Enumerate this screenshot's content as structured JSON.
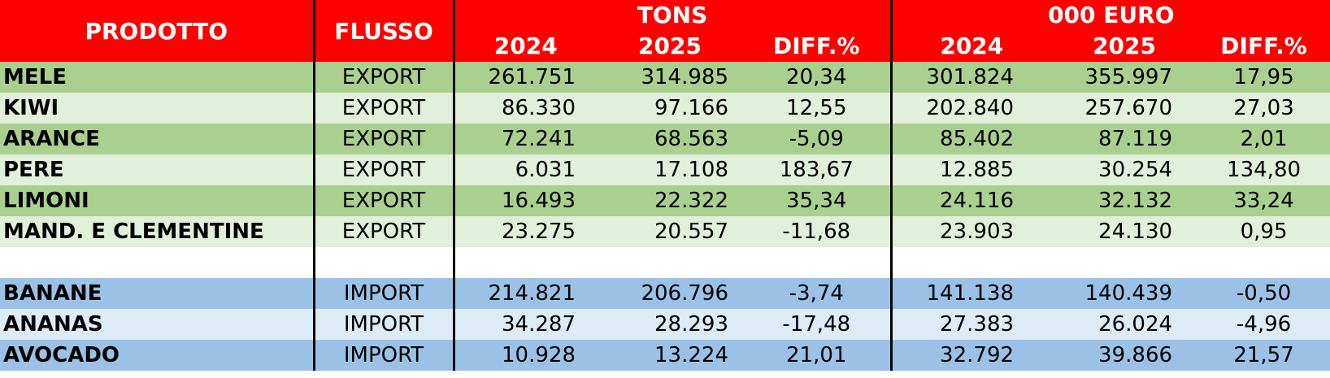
{
  "header": {
    "prodotto": "PRODOTTO",
    "flusso": "FLUSSO",
    "tons": "TONS",
    "euro": "000 EURO",
    "y2024": "2024",
    "y2025": "2025",
    "diff": "DIFF.%"
  },
  "rows": [
    {
      "prodotto": "MELE",
      "flusso": "EXPORT",
      "t2024": "261.751",
      "t2025": "314.985",
      "tdiff": "20,34",
      "e2024": "301.824",
      "e2025": "355.997",
      "ediff": "17,95"
    },
    {
      "prodotto": "KIWI",
      "flusso": "EXPORT",
      "t2024": "86.330",
      "t2025": "97.166",
      "tdiff": "12,55",
      "e2024": "202.840",
      "e2025": "257.670",
      "ediff": "27,03"
    },
    {
      "prodotto": "ARANCE",
      "flusso": "EXPORT",
      "t2024": "72.241",
      "t2025": "68.563",
      "tdiff": "-5,09",
      "e2024": "85.402",
      "e2025": "87.119",
      "ediff": "2,01"
    },
    {
      "prodotto": "PERE",
      "flusso": "EXPORT",
      "t2024": "6.031",
      "t2025": "17.108",
      "tdiff": "183,67",
      "e2024": "12.885",
      "e2025": "30.254",
      "ediff": "134,80"
    },
    {
      "prodotto": "LIMONI",
      "flusso": "EXPORT",
      "t2024": "16.493",
      "t2025": "22.322",
      "tdiff": "35,34",
      "e2024": "24.116",
      "e2025": "32.132",
      "ediff": "33,24"
    },
    {
      "prodotto": "MAND. E CLEMENTINE",
      "flusso": "EXPORT",
      "t2024": "23.275",
      "t2025": "20.557",
      "tdiff": "-11,68",
      "e2024": "23.903",
      "e2025": "24.130",
      "ediff": "0,95"
    },
    {
      "prodotto": "BANANE",
      "flusso": "IMPORT",
      "t2024": "214.821",
      "t2025": "206.796",
      "tdiff": "-3,74",
      "e2024": "141.138",
      "e2025": "140.439",
      "ediff": "-0,50"
    },
    {
      "prodotto": "ANANAS",
      "flusso": "IMPORT",
      "t2024": "34.287",
      "t2025": "28.293",
      "tdiff": "-17,48",
      "e2024": "27.383",
      "e2025": "26.024",
      "ediff": "-4,96"
    },
    {
      "prodotto": "AVOCADO",
      "flusso": "IMPORT",
      "t2024": "10.928",
      "t2025": "13.224",
      "tdiff": "21,01",
      "e2024": "32.792",
      "e2025": "39.866",
      "ediff": "21,57"
    }
  ]
}
